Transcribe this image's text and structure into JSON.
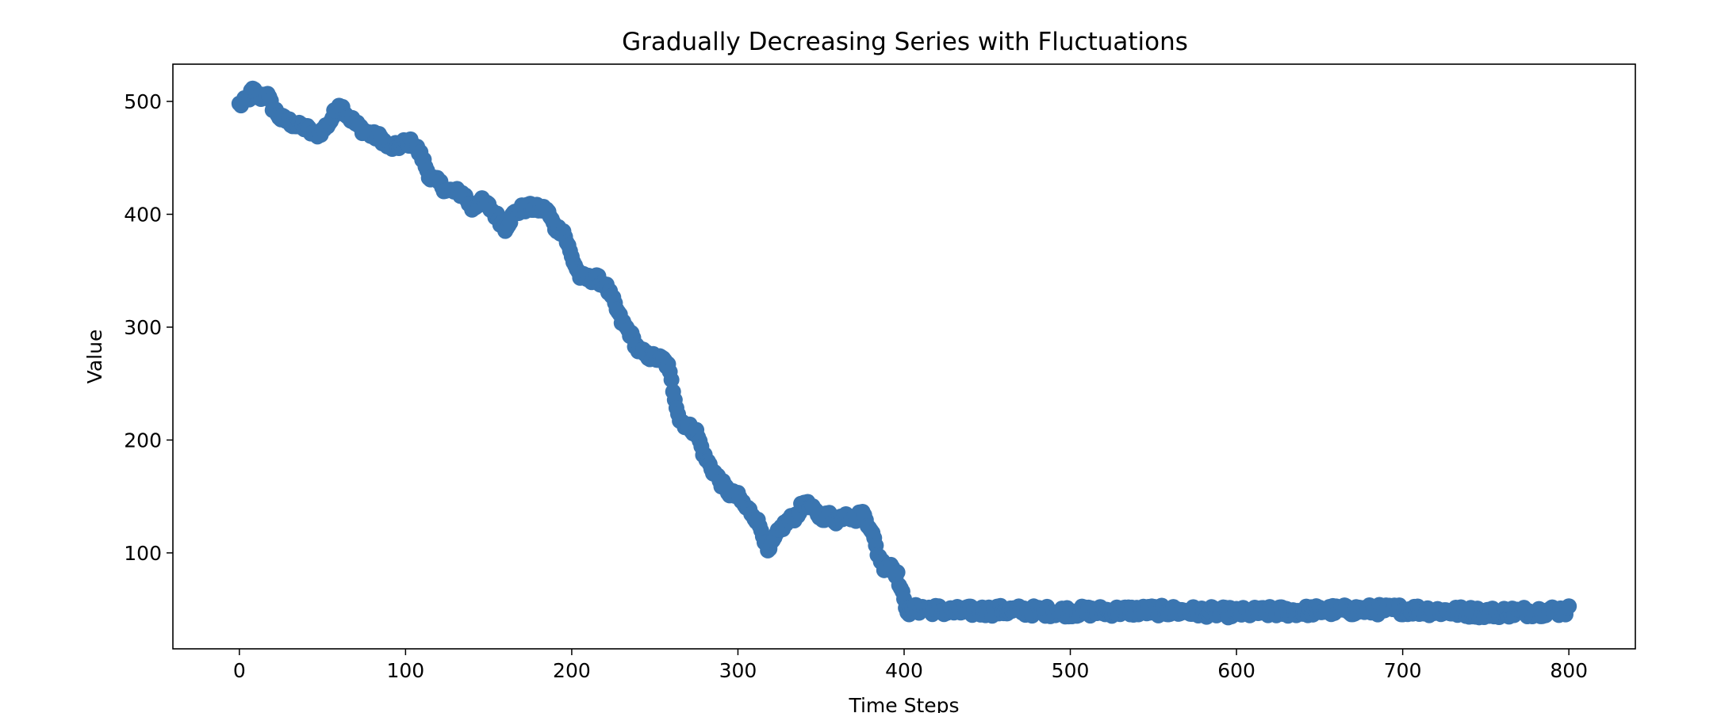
{
  "chart_data": {
    "type": "scatter",
    "title": "Gradually Decreasing Series with Fluctuations",
    "xlabel": "Time Steps",
    "ylabel": "Value",
    "xlim": [
      -40,
      840
    ],
    "ylim": [
      15,
      533
    ],
    "xticks": [
      0,
      100,
      200,
      300,
      400,
      500,
      600,
      700,
      800
    ],
    "yticks": [
      100,
      200,
      300,
      400,
      500
    ],
    "grid": false,
    "legend": "none",
    "marker_color": "#3a75b0",
    "x_range": [
      0,
      800
    ],
    "anchors": [
      [
        0,
        497
      ],
      [
        5,
        501
      ],
      [
        8,
        510
      ],
      [
        12,
        503
      ],
      [
        16,
        508
      ],
      [
        20,
        495
      ],
      [
        25,
        485
      ],
      [
        30,
        482
      ],
      [
        35,
        478
      ],
      [
        40,
        477
      ],
      [
        45,
        470
      ],
      [
        50,
        474
      ],
      [
        55,
        483
      ],
      [
        60,
        498
      ],
      [
        65,
        488
      ],
      [
        70,
        480
      ],
      [
        75,
        474
      ],
      [
        80,
        470
      ],
      [
        85,
        468
      ],
      [
        90,
        459
      ],
      [
        95,
        460
      ],
      [
        100,
        464
      ],
      [
        105,
        463
      ],
      [
        110,
        450
      ],
      [
        115,
        432
      ],
      [
        120,
        428
      ],
      [
        125,
        421
      ],
      [
        130,
        420
      ],
      [
        135,
        418
      ],
      [
        140,
        405
      ],
      [
        145,
        412
      ],
      [
        150,
        407
      ],
      [
        155,
        398
      ],
      [
        160,
        388
      ],
      [
        165,
        400
      ],
      [
        170,
        405
      ],
      [
        175,
        406
      ],
      [
        180,
        405
      ],
      [
        185,
        404
      ],
      [
        190,
        388
      ],
      [
        195,
        385
      ],
      [
        200,
        362
      ],
      [
        205,
        345
      ],
      [
        210,
        343
      ],
      [
        215,
        343
      ],
      [
        220,
        338
      ],
      [
        225,
        323
      ],
      [
        230,
        305
      ],
      [
        235,
        295
      ],
      [
        240,
        280
      ],
      [
        245,
        275
      ],
      [
        250,
        273
      ],
      [
        255,
        271
      ],
      [
        258,
        265
      ],
      [
        262,
        238
      ],
      [
        265,
        218
      ],
      [
        270,
        212
      ],
      [
        275,
        207
      ],
      [
        280,
        185
      ],
      [
        285,
        173
      ],
      [
        290,
        162
      ],
      [
        295,
        153
      ],
      [
        300,
        150
      ],
      [
        305,
        140
      ],
      [
        310,
        133
      ],
      [
        315,
        118
      ],
      [
        318,
        100
      ],
      [
        322,
        112
      ],
      [
        326,
        122
      ],
      [
        330,
        128
      ],
      [
        335,
        133
      ],
      [
        340,
        145
      ],
      [
        345,
        138
      ],
      [
        350,
        132
      ],
      [
        355,
        133
      ],
      [
        360,
        128
      ],
      [
        365,
        136
      ],
      [
        370,
        130
      ],
      [
        375,
        135
      ],
      [
        380,
        122
      ],
      [
        384,
        100
      ],
      [
        388,
        88
      ],
      [
        392,
        90
      ],
      [
        396,
        80
      ],
      [
        400,
        57
      ],
      [
        403,
        48
      ],
      [
        410,
        51
      ],
      [
        430,
        48
      ],
      [
        460,
        49
      ],
      [
        500,
        48
      ],
      [
        550,
        49
      ],
      [
        600,
        47
      ],
      [
        650,
        49
      ],
      [
        700,
        50
      ],
      [
        750,
        47
      ],
      [
        800,
        49
      ]
    ]
  }
}
